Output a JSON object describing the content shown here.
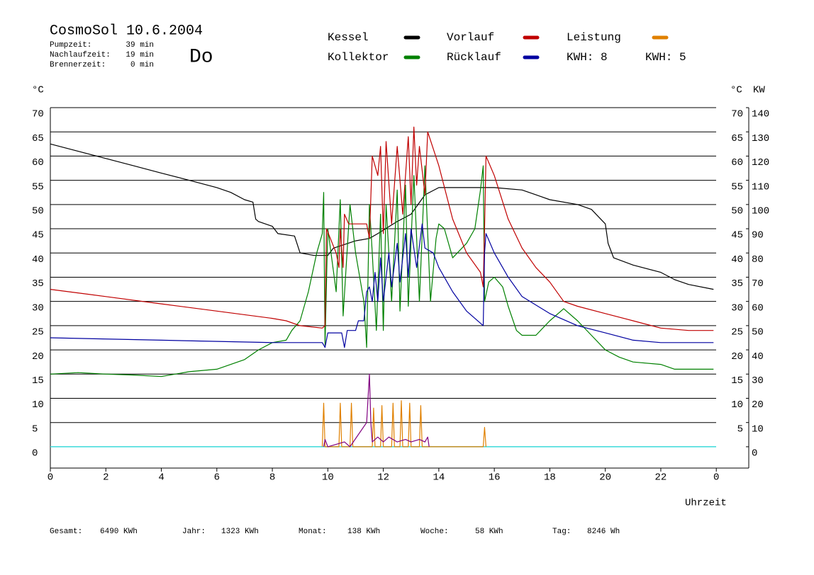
{
  "chart_data": {
    "type": "line",
    "title": "CosmoSol 10.6.2004",
    "stats": [
      {
        "label": "Pumpzeit:",
        "value": "39 min"
      },
      {
        "label": "Nachlaufzeit:",
        "value": "19 min"
      },
      {
        "label": "Brennerzeit:",
        "value": "0 min"
      }
    ],
    "day": "Do",
    "day_color": "#0000c0",
    "y_label": "°C",
    "y_label_right": "°C",
    "y2_label": "KW",
    "x_label": "Uhrzeit",
    "legend_notes": [
      {
        "text": "KWH: 8",
        "color": "#e08000"
      },
      {
        "text": "KWH: 5",
        "color": "#800080"
      }
    ],
    "xlim": [
      0,
      25.17
    ],
    "xticks": [
      0,
      2,
      4,
      6,
      8,
      10,
      12,
      14,
      16,
      18,
      20,
      22,
      {
        "value": 24,
        "label": "0"
      }
    ],
    "ylim": [
      -4.4,
      70
    ],
    "yticks": [
      0,
      5,
      10,
      15,
      20,
      25,
      30,
      35,
      40,
      45,
      50,
      55,
      60,
      65,
      70
    ],
    "yticks_right": [
      5,
      10,
      15,
      20,
      25,
      30,
      35,
      40,
      45,
      50,
      55,
      60,
      65,
      70
    ],
    "y2lim": [
      -8.8,
      140
    ],
    "y2ticks": [
      0,
      10,
      20,
      30,
      40,
      50,
      60,
      70,
      80,
      90,
      100,
      110,
      120,
      130,
      140
    ],
    "y2_color": "#e08000",
    "grid": true,
    "zero_line_color": "#40e0e0",
    "series": [
      {
        "name": "Kessel",
        "color": "#000000",
        "x": [
          0,
          1,
          2,
          3,
          4,
          5,
          6,
          6.5,
          7,
          7.3,
          7.4,
          7.5,
          8,
          8.2,
          8.8,
          9,
          9.5,
          9.9,
          10,
          10.2,
          11,
          11.5,
          11.8,
          12.5,
          13,
          13.5,
          14,
          15,
          15.6,
          16,
          17,
          17.5,
          18,
          19,
          19.5,
          20,
          20.1,
          20.3,
          21,
          22,
          22.5,
          23,
          23.9
        ],
        "values": [
          62.5,
          61,
          59.5,
          58,
          56.5,
          55,
          53.5,
          52.5,
          51,
          50.5,
          47,
          46.5,
          45.5,
          44,
          43.5,
          40,
          39.5,
          39.5,
          39.5,
          41,
          42.5,
          43,
          44,
          46.5,
          48,
          52,
          53.5,
          53.5,
          53.5,
          53.5,
          53,
          52,
          51,
          50,
          49,
          46,
          42,
          39,
          37.5,
          36,
          34.5,
          33.5,
          32.5
        ]
      },
      {
        "name": "Kollektor",
        "color": "#008000",
        "x": [
          0,
          1,
          2,
          3,
          4,
          5,
          6,
          7,
          7.5,
          8,
          8.5,
          8.7,
          9,
          9.3,
          9.6,
          9.8,
          9.85,
          9.9,
          10,
          10.3,
          10.45,
          10.55,
          10.8,
          11,
          11.3,
          11.4,
          11.5,
          11.6,
          11.75,
          11.9,
          12,
          12.1,
          12.3,
          12.5,
          12.6,
          12.8,
          12.9,
          13.1,
          13.3,
          13.5,
          13.7,
          13.9,
          14,
          14.2,
          14.5,
          15,
          15.3,
          15.5,
          15.6,
          15.65,
          15.8,
          16,
          16.3,
          16.5,
          16.8,
          17,
          17.5,
          18,
          18.5,
          19,
          19.5,
          20,
          20.5,
          21,
          22,
          22.5,
          23,
          23.9
        ],
        "values": [
          15,
          15.3,
          15,
          14.8,
          14.5,
          15.5,
          16,
          18,
          20,
          21.5,
          22,
          24,
          26,
          32,
          40,
          44,
          52.5,
          21,
          45,
          32,
          51,
          27,
          50,
          40,
          30,
          20.5,
          50,
          40,
          24,
          48,
          24,
          50,
          30,
          53,
          28,
          54,
          29,
          56,
          30,
          58,
          30,
          43,
          46,
          45,
          39,
          42,
          45,
          53,
          58,
          30,
          34,
          35,
          33,
          29,
          24,
          23,
          23,
          26,
          28.5,
          26,
          23,
          20,
          18.5,
          17.5,
          17,
          16,
          16,
          16
        ]
      },
      {
        "name": "Vorlauf",
        "color": "#c00000",
        "x": [
          0,
          2,
          4,
          6,
          8,
          8.5,
          9,
          9.8,
          9.9,
          9.95,
          10.3,
          10.4,
          10.45,
          10.55,
          10.6,
          10.75,
          11,
          11.4,
          11.5,
          11.6,
          11.8,
          11.9,
          12,
          12.1,
          12.3,
          12.5,
          12.7,
          12.9,
          13,
          13.1,
          13.2,
          13.3,
          13.5,
          13.6,
          14,
          14.5,
          15,
          15.5,
          15.6,
          15.65,
          15.7,
          16,
          16.5,
          17,
          17.5,
          18,
          18.5,
          19,
          20,
          21,
          22,
          23,
          23.9
        ],
        "values": [
          32.5,
          31,
          29.5,
          28,
          26.5,
          26,
          25,
          24.5,
          25,
          45,
          40,
          37,
          45,
          37,
          48,
          46,
          46,
          46,
          43,
          60,
          56,
          62,
          44,
          63,
          46,
          62,
          48,
          64,
          50,
          66,
          54,
          62,
          52,
          65,
          58,
          47,
          40,
          36,
          33,
          45,
          60,
          56,
          47,
          41,
          37,
          34,
          30,
          29,
          27.5,
          26,
          24.5,
          24,
          24
        ]
      },
      {
        "name": "Rücklauf",
        "color": "#0000a0",
        "x": [
          0,
          4,
          8,
          9.8,
          9.9,
          10,
          10.5,
          10.6,
          10.7,
          11,
          11.1,
          11.3,
          11.4,
          11.5,
          11.6,
          11.7,
          11.8,
          11.9,
          12,
          12.2,
          12.3,
          12.5,
          12.6,
          12.8,
          12.9,
          13,
          13.2,
          13.4,
          13.5,
          13.8,
          14,
          14.5,
          15,
          15.5,
          15.6,
          15.65,
          15.7,
          16,
          16.5,
          17,
          18,
          19,
          20,
          21,
          22,
          23.9
        ],
        "values": [
          22.5,
          22,
          21.5,
          21.5,
          20.5,
          23.5,
          23.5,
          20.5,
          24,
          24,
          26,
          26,
          32,
          33,
          30,
          36,
          30,
          39,
          30,
          40,
          33,
          42,
          34,
          44,
          35,
          45,
          37,
          46,
          41,
          40,
          37,
          32,
          28,
          25.5,
          25,
          40,
          44,
          40,
          35,
          31,
          27.5,
          25,
          23.5,
          22,
          21.5,
          21.5
        ]
      },
      {
        "name": "Leistung",
        "color": "#e08000",
        "axis": "y2",
        "x": [
          9.8,
          9.85,
          9.9,
          10.4,
          10.45,
          10.5,
          10.8,
          10.85,
          10.9,
          11.6,
          11.65,
          11.7,
          11.9,
          11.95,
          12,
          12.3,
          12.35,
          12.4,
          12.6,
          12.65,
          12.7,
          12.9,
          12.95,
          13,
          13.3,
          13.35,
          13.4,
          15.6,
          15.65,
          15.7
        ],
        "values": [
          0,
          18,
          0,
          0,
          18,
          0,
          0,
          18,
          0,
          0,
          16,
          0,
          0,
          17,
          0,
          0,
          18,
          0,
          0,
          19,
          0,
          0,
          18,
          0,
          0,
          17,
          0,
          0,
          8,
          0
        ]
      },
      {
        "color": "#800080",
        "axis": "y2",
        "x": [
          9.85,
          9.9,
          10,
          10.6,
          10.8,
          11.4,
          11.5,
          11.55,
          11.6,
          11.8,
          12,
          12.2,
          12.5,
          12.8,
          13,
          13.3,
          13.5,
          13.6,
          13.65
        ],
        "values": [
          0,
          3,
          0,
          2,
          0,
          10,
          30,
          10,
          2,
          4,
          2,
          4,
          2,
          3,
          2,
          3,
          2,
          4,
          0
        ]
      }
    ],
    "footer": [
      {
        "label": "Gesamt:",
        "value": "6490 KWh"
      },
      {
        "label": "Jahr:",
        "value": "1323 KWh"
      },
      {
        "label": "Monat:",
        "value": "138 KWh"
      },
      {
        "label": "Woche:",
        "value": "58 KWh"
      },
      {
        "label": "Tag:",
        "value": "8246 Wh"
      }
    ]
  }
}
